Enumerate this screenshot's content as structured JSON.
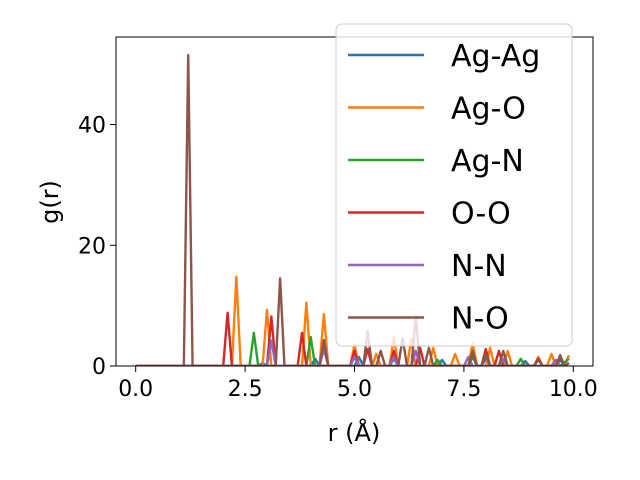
{
  "chart_data": {
    "type": "line",
    "xlabel": "r (Å)",
    "ylabel": "g(r)",
    "xlim": [
      -0.45,
      10.45
    ],
    "ylim": [
      0,
      54.5
    ],
    "xticks": [
      0.0,
      2.5,
      5.0,
      7.5,
      10.0
    ],
    "xtick_labels": [
      "0.0",
      "2.5",
      "5.0",
      "7.5",
      "10.0"
    ],
    "yticks": [
      0,
      20,
      40
    ],
    "ytick_labels": [
      "0",
      "20",
      "40"
    ],
    "grid": false,
    "legend_position": "top-right",
    "series": [
      {
        "name": "Ag-Ag",
        "color": "#1f77b4",
        "points": [
          [
            0,
            0
          ],
          [
            2.8,
            0
          ],
          [
            2.9,
            0.5
          ],
          [
            3.0,
            0
          ],
          [
            4.0,
            0
          ],
          [
            4.1,
            1.2
          ],
          [
            4.2,
            0
          ],
          [
            5.0,
            0
          ],
          [
            5.1,
            1.5
          ],
          [
            5.2,
            0
          ],
          [
            5.8,
            0
          ],
          [
            5.9,
            1.2
          ],
          [
            6.0,
            0
          ],
          [
            6.9,
            0
          ],
          [
            7.0,
            1.0
          ],
          [
            7.1,
            0
          ],
          [
            7.9,
            0
          ],
          [
            8.0,
            1.2
          ],
          [
            8.1,
            0
          ],
          [
            8.8,
            0
          ],
          [
            8.9,
            0.8
          ],
          [
            9.0,
            0
          ],
          [
            9.6,
            0
          ],
          [
            9.7,
            1.0
          ],
          [
            9.8,
            0
          ],
          [
            9.9,
            0.5
          ]
        ]
      },
      {
        "name": "Ag-O",
        "color": "#ff7f0e",
        "points": [
          [
            0,
            0
          ],
          [
            2.2,
            0
          ],
          [
            2.3,
            14.8
          ],
          [
            2.4,
            0
          ],
          [
            2.9,
            0
          ],
          [
            3.0,
            9.3
          ],
          [
            3.1,
            0
          ],
          [
            3.8,
            0
          ],
          [
            3.9,
            10.5
          ],
          [
            4.0,
            0
          ],
          [
            4.2,
            0
          ],
          [
            4.3,
            8.6
          ],
          [
            4.4,
            0
          ],
          [
            4.9,
            0
          ],
          [
            5.0,
            3.5
          ],
          [
            5.1,
            0
          ],
          [
            5.4,
            0
          ],
          [
            5.5,
            2.0
          ],
          [
            5.6,
            0
          ],
          [
            5.8,
            0
          ],
          [
            5.9,
            4.8
          ],
          [
            6.0,
            0
          ],
          [
            6.2,
            0
          ],
          [
            6.3,
            4.5
          ],
          [
            6.4,
            0
          ],
          [
            6.7,
            0
          ],
          [
            6.8,
            3.0
          ],
          [
            6.9,
            0
          ],
          [
            7.2,
            0
          ],
          [
            7.3,
            2.0
          ],
          [
            7.4,
            0
          ],
          [
            7.6,
            0
          ],
          [
            7.7,
            3.8
          ],
          [
            7.8,
            0
          ],
          [
            8.0,
            0
          ],
          [
            8.1,
            3.0
          ],
          [
            8.2,
            0
          ],
          [
            8.4,
            0
          ],
          [
            8.5,
            2.5
          ],
          [
            8.6,
            0
          ],
          [
            9.1,
            0
          ],
          [
            9.2,
            1.5
          ],
          [
            9.3,
            0
          ],
          [
            9.4,
            0
          ],
          [
            9.5,
            2.0
          ],
          [
            9.6,
            0
          ],
          [
            9.8,
            0
          ],
          [
            9.9,
            1.8
          ]
        ]
      },
      {
        "name": "Ag-N",
        "color": "#2ca02c",
        "points": [
          [
            0,
            0
          ],
          [
            2.6,
            0
          ],
          [
            2.7,
            5.5
          ],
          [
            2.8,
            0
          ],
          [
            3.9,
            0
          ],
          [
            4.0,
            4.8
          ],
          [
            4.1,
            0
          ],
          [
            4.9,
            0
          ],
          [
            5.0,
            1.5
          ],
          [
            5.1,
            0
          ],
          [
            6.8,
            0
          ],
          [
            6.9,
            1.0
          ],
          [
            7.0,
            0
          ],
          [
            7.6,
            0
          ],
          [
            7.7,
            1.5
          ],
          [
            7.8,
            0
          ],
          [
            8.7,
            0
          ],
          [
            8.8,
            1.2
          ],
          [
            8.9,
            0
          ],
          [
            9.5,
            0
          ],
          [
            9.6,
            1.0
          ],
          [
            9.7,
            0
          ],
          [
            9.9,
            1.2
          ]
        ]
      },
      {
        "name": "O-O",
        "color": "#d62728",
        "points": [
          [
            0,
            0
          ],
          [
            2.0,
            0
          ],
          [
            2.1,
            8.8
          ],
          [
            2.2,
            0
          ],
          [
            3.0,
            0
          ],
          [
            3.1,
            8.2
          ],
          [
            3.2,
            0
          ],
          [
            3.7,
            0
          ],
          [
            3.8,
            5.5
          ],
          [
            3.9,
            0
          ],
          [
            4.9,
            0
          ],
          [
            5.0,
            2.5
          ],
          [
            5.1,
            0
          ],
          [
            5.2,
            0
          ],
          [
            5.3,
            2.8
          ],
          [
            5.4,
            0
          ],
          [
            5.8,
            0
          ],
          [
            5.9,
            2.5
          ],
          [
            6.0,
            0
          ],
          [
            6.4,
            0
          ],
          [
            6.5,
            3.0
          ],
          [
            6.6,
            0
          ],
          [
            7.6,
            0
          ],
          [
            7.7,
            2.2
          ],
          [
            7.8,
            0
          ],
          [
            7.9,
            0
          ],
          [
            8.0,
            2.8
          ],
          [
            8.1,
            0
          ],
          [
            8.2,
            0
          ],
          [
            8.3,
            2.5
          ],
          [
            8.4,
            0
          ],
          [
            9.1,
            0
          ],
          [
            9.2,
            1.2
          ],
          [
            9.3,
            0
          ],
          [
            9.6,
            0
          ],
          [
            9.7,
            1.5
          ],
          [
            9.8,
            0
          ]
        ]
      },
      {
        "name": "N-N",
        "color": "#9467bd",
        "points": [
          [
            0,
            0
          ],
          [
            3.0,
            0
          ],
          [
            3.1,
            4.2
          ],
          [
            3.2,
            0
          ],
          [
            4.2,
            0
          ],
          [
            4.3,
            2.8
          ],
          [
            4.4,
            0
          ],
          [
            4.9,
            0
          ],
          [
            5.0,
            1.5
          ],
          [
            5.1,
            0
          ],
          [
            5.8,
            0
          ],
          [
            5.9,
            1.5
          ],
          [
            6.0,
            0
          ],
          [
            6.3,
            0
          ],
          [
            6.4,
            2.5
          ],
          [
            6.5,
            0
          ],
          [
            7.5,
            0
          ],
          [
            7.6,
            1.5
          ],
          [
            7.7,
            0
          ],
          [
            8.3,
            0
          ],
          [
            8.4,
            1.2
          ],
          [
            8.5,
            0
          ],
          [
            9.5,
            0
          ],
          [
            9.6,
            1.0
          ],
          [
            9.7,
            0
          ]
        ]
      },
      {
        "name": "N-O",
        "color": "#8c564b",
        "points": [
          [
            0,
            0
          ],
          [
            1.1,
            0
          ],
          [
            1.2,
            51.5
          ],
          [
            1.3,
            0
          ],
          [
            3.2,
            0
          ],
          [
            3.3,
            14.5
          ],
          [
            3.4,
            0
          ],
          [
            4.2,
            0
          ],
          [
            4.3,
            4.3
          ],
          [
            4.4,
            0
          ],
          [
            5.2,
            0
          ],
          [
            5.3,
            5.8
          ],
          [
            5.4,
            0
          ],
          [
            5.5,
            0
          ],
          [
            5.6,
            2.5
          ],
          [
            5.7,
            0
          ],
          [
            6.0,
            0
          ],
          [
            6.1,
            4.6
          ],
          [
            6.2,
            0
          ],
          [
            6.3,
            0
          ],
          [
            6.4,
            8.2
          ],
          [
            6.5,
            0
          ],
          [
            6.6,
            0
          ],
          [
            6.7,
            3.0
          ],
          [
            6.8,
            0
          ],
          [
            7.6,
            0
          ],
          [
            7.7,
            2.5
          ],
          [
            7.8,
            0
          ],
          [
            7.9,
            0
          ],
          [
            8.0,
            2.0
          ],
          [
            8.1,
            0
          ],
          [
            8.3,
            0
          ],
          [
            8.4,
            2.5
          ],
          [
            8.5,
            0
          ],
          [
            9.1,
            0
          ],
          [
            9.2,
            1.0
          ],
          [
            9.3,
            0
          ],
          [
            9.6,
            0
          ],
          [
            9.7,
            1.8
          ],
          [
            9.8,
            0
          ],
          [
            9.9,
            0.5
          ]
        ]
      }
    ]
  }
}
